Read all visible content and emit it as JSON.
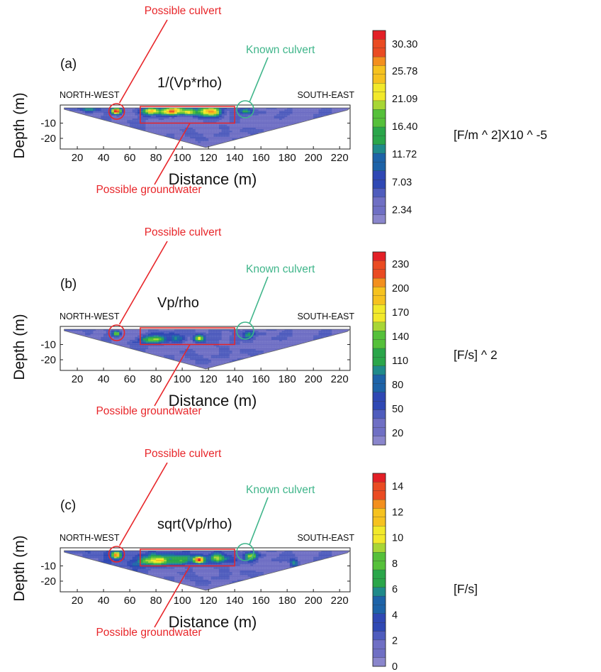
{
  "chart_data": [
    {
      "type": "heatmap",
      "panel_label": "(a)",
      "title": "1/(Vp*rho)",
      "xlabel": "Distance (m)",
      "ylabel": "Depth (m)",
      "x_ticks": [
        "20",
        "40",
        "60",
        "80",
        "100",
        "120",
        "140",
        "160",
        "180",
        "200",
        "220"
      ],
      "y_ticks": [
        "-10",
        "-20"
      ],
      "xlim": [
        7,
        228
      ],
      "ylim": [
        -27,
        0
      ],
      "direction_left": "NORTH-WEST",
      "direction_right": "SOUTH-EAST",
      "annotations": {
        "possible_culvert": "Possible culvert",
        "known_culvert": "Known culvert",
        "possible_groundwater": "Possible groundwater"
      },
      "culvert_x": 50,
      "known_culvert_x": 148,
      "groundwater_box": {
        "x_range": [
          68,
          140
        ],
        "depth_range": [
          -10,
          0
        ]
      },
      "colorbar_ticks": [
        "30.30",
        "25.78",
        "21.09",
        "16.40",
        "11.72",
        "7.03",
        "2.34"
      ],
      "colorbar_range": [
        0,
        32.6
      ],
      "unit": "[F/m ^ 2]X10 ^ -5"
    },
    {
      "type": "heatmap",
      "panel_label": "(b)",
      "title": "Vp/rho",
      "xlabel": "Distance (m)",
      "ylabel": "Depth (m)",
      "x_ticks": [
        "20",
        "40",
        "60",
        "80",
        "100",
        "120",
        "140",
        "160",
        "180",
        "200",
        "220"
      ],
      "y_ticks": [
        "-10",
        "-20"
      ],
      "xlim": [
        7,
        228
      ],
      "ylim": [
        -27,
        0
      ],
      "direction_left": "NORTH-WEST",
      "direction_right": "SOUTH-EAST",
      "annotations": {
        "possible_culvert": "Possible culvert",
        "known_culvert": "Known culvert",
        "possible_groundwater": "Possible groundwater"
      },
      "culvert_x": 50,
      "known_culvert_x": 148,
      "groundwater_box": {
        "x_range": [
          68,
          140
        ],
        "depth_range": [
          -10,
          0
        ]
      },
      "colorbar_ticks": [
        "230",
        "200",
        "170",
        "140",
        "110",
        "80",
        "50",
        "20"
      ],
      "colorbar_range": [
        5,
        245
      ],
      "unit": "[F/s] ^ 2"
    },
    {
      "type": "heatmap",
      "panel_label": "(c)",
      "title": "sqrt(Vp/rho)",
      "xlabel": "Distance (m)",
      "ylabel": "Depth (m)",
      "x_ticks": [
        "20",
        "40",
        "60",
        "80",
        "100",
        "120",
        "140",
        "160",
        "180",
        "200",
        "220"
      ],
      "y_ticks": [
        "-10",
        "-20"
      ],
      "xlim": [
        7,
        228
      ],
      "ylim": [
        -27,
        0
      ],
      "direction_left": "NORTH-WEST",
      "direction_right": "SOUTH-EAST",
      "annotations": {
        "possible_culvert": "Possible culvert",
        "known_culvert": "Known culvert",
        "possible_groundwater": "Possible groundwater"
      },
      "culvert_x": 50,
      "known_culvert_x": 148,
      "groundwater_box": {
        "x_range": [
          68,
          140
        ],
        "depth_range": [
          -10,
          0
        ]
      },
      "colorbar_ticks": [
        "14",
        "12",
        "10",
        "8",
        "6",
        "4",
        "2",
        "0"
      ],
      "colorbar_range": [
        0,
        15
      ],
      "unit": "[F/s]"
    }
  ],
  "colors": {
    "annotation_red": "#e8262a",
    "annotation_green": "#3fb58a",
    "background_low": "#8f8fd0",
    "colormap": [
      "#8a86cc",
      "#6f6fc4",
      "#4f5cbd",
      "#2f48b4",
      "#1d63a8",
      "#1f8a8a",
      "#2aa64a",
      "#55c03a",
      "#a8d635",
      "#f2e92a",
      "#f6c21f",
      "#f38f1e",
      "#ea4b22",
      "#e31f26"
    ]
  }
}
